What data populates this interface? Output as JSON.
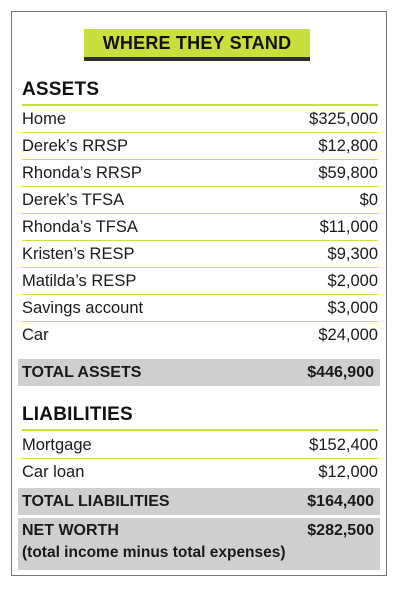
{
  "title": "WHERE THEY STAND",
  "assets": {
    "heading": "ASSETS",
    "items": [
      {
        "label": "Home",
        "amount": "$325,000"
      },
      {
        "label": "Derek’s RRSP",
        "amount": "$12,800"
      },
      {
        "label": "Rhonda’s RRSP",
        "amount": "$59,800"
      },
      {
        "label": "Derek’s TFSA",
        "amount": "$0"
      },
      {
        "label": "Rhonda’s TFSA",
        "amount": "$11,000"
      },
      {
        "label": "Kristen’s RESP",
        "amount": "$9,300"
      },
      {
        "label": "Matilda’s RESP",
        "amount": "$2,000"
      },
      {
        "label": "Savings account",
        "amount": "$3,000"
      },
      {
        "label": "Car",
        "amount": "$24,000"
      }
    ],
    "total_label": "TOTAL ASSETS",
    "total_amount": "$446,900"
  },
  "liabilities": {
    "heading": "LIABILITIES",
    "items": [
      {
        "label": "Mortgage",
        "amount": "$152,400"
      },
      {
        "label": "Car loan",
        "amount": "$12,000"
      }
    ],
    "total_label": "TOTAL LIABILITIES",
    "total_amount": "$164,400"
  },
  "net_worth": {
    "label": "NET WORTH",
    "amount": "$282,500",
    "note": "(total income minus total expenses)"
  },
  "colors": {
    "accent": "#c8df3c",
    "total_band": "#cfcfcf"
  }
}
